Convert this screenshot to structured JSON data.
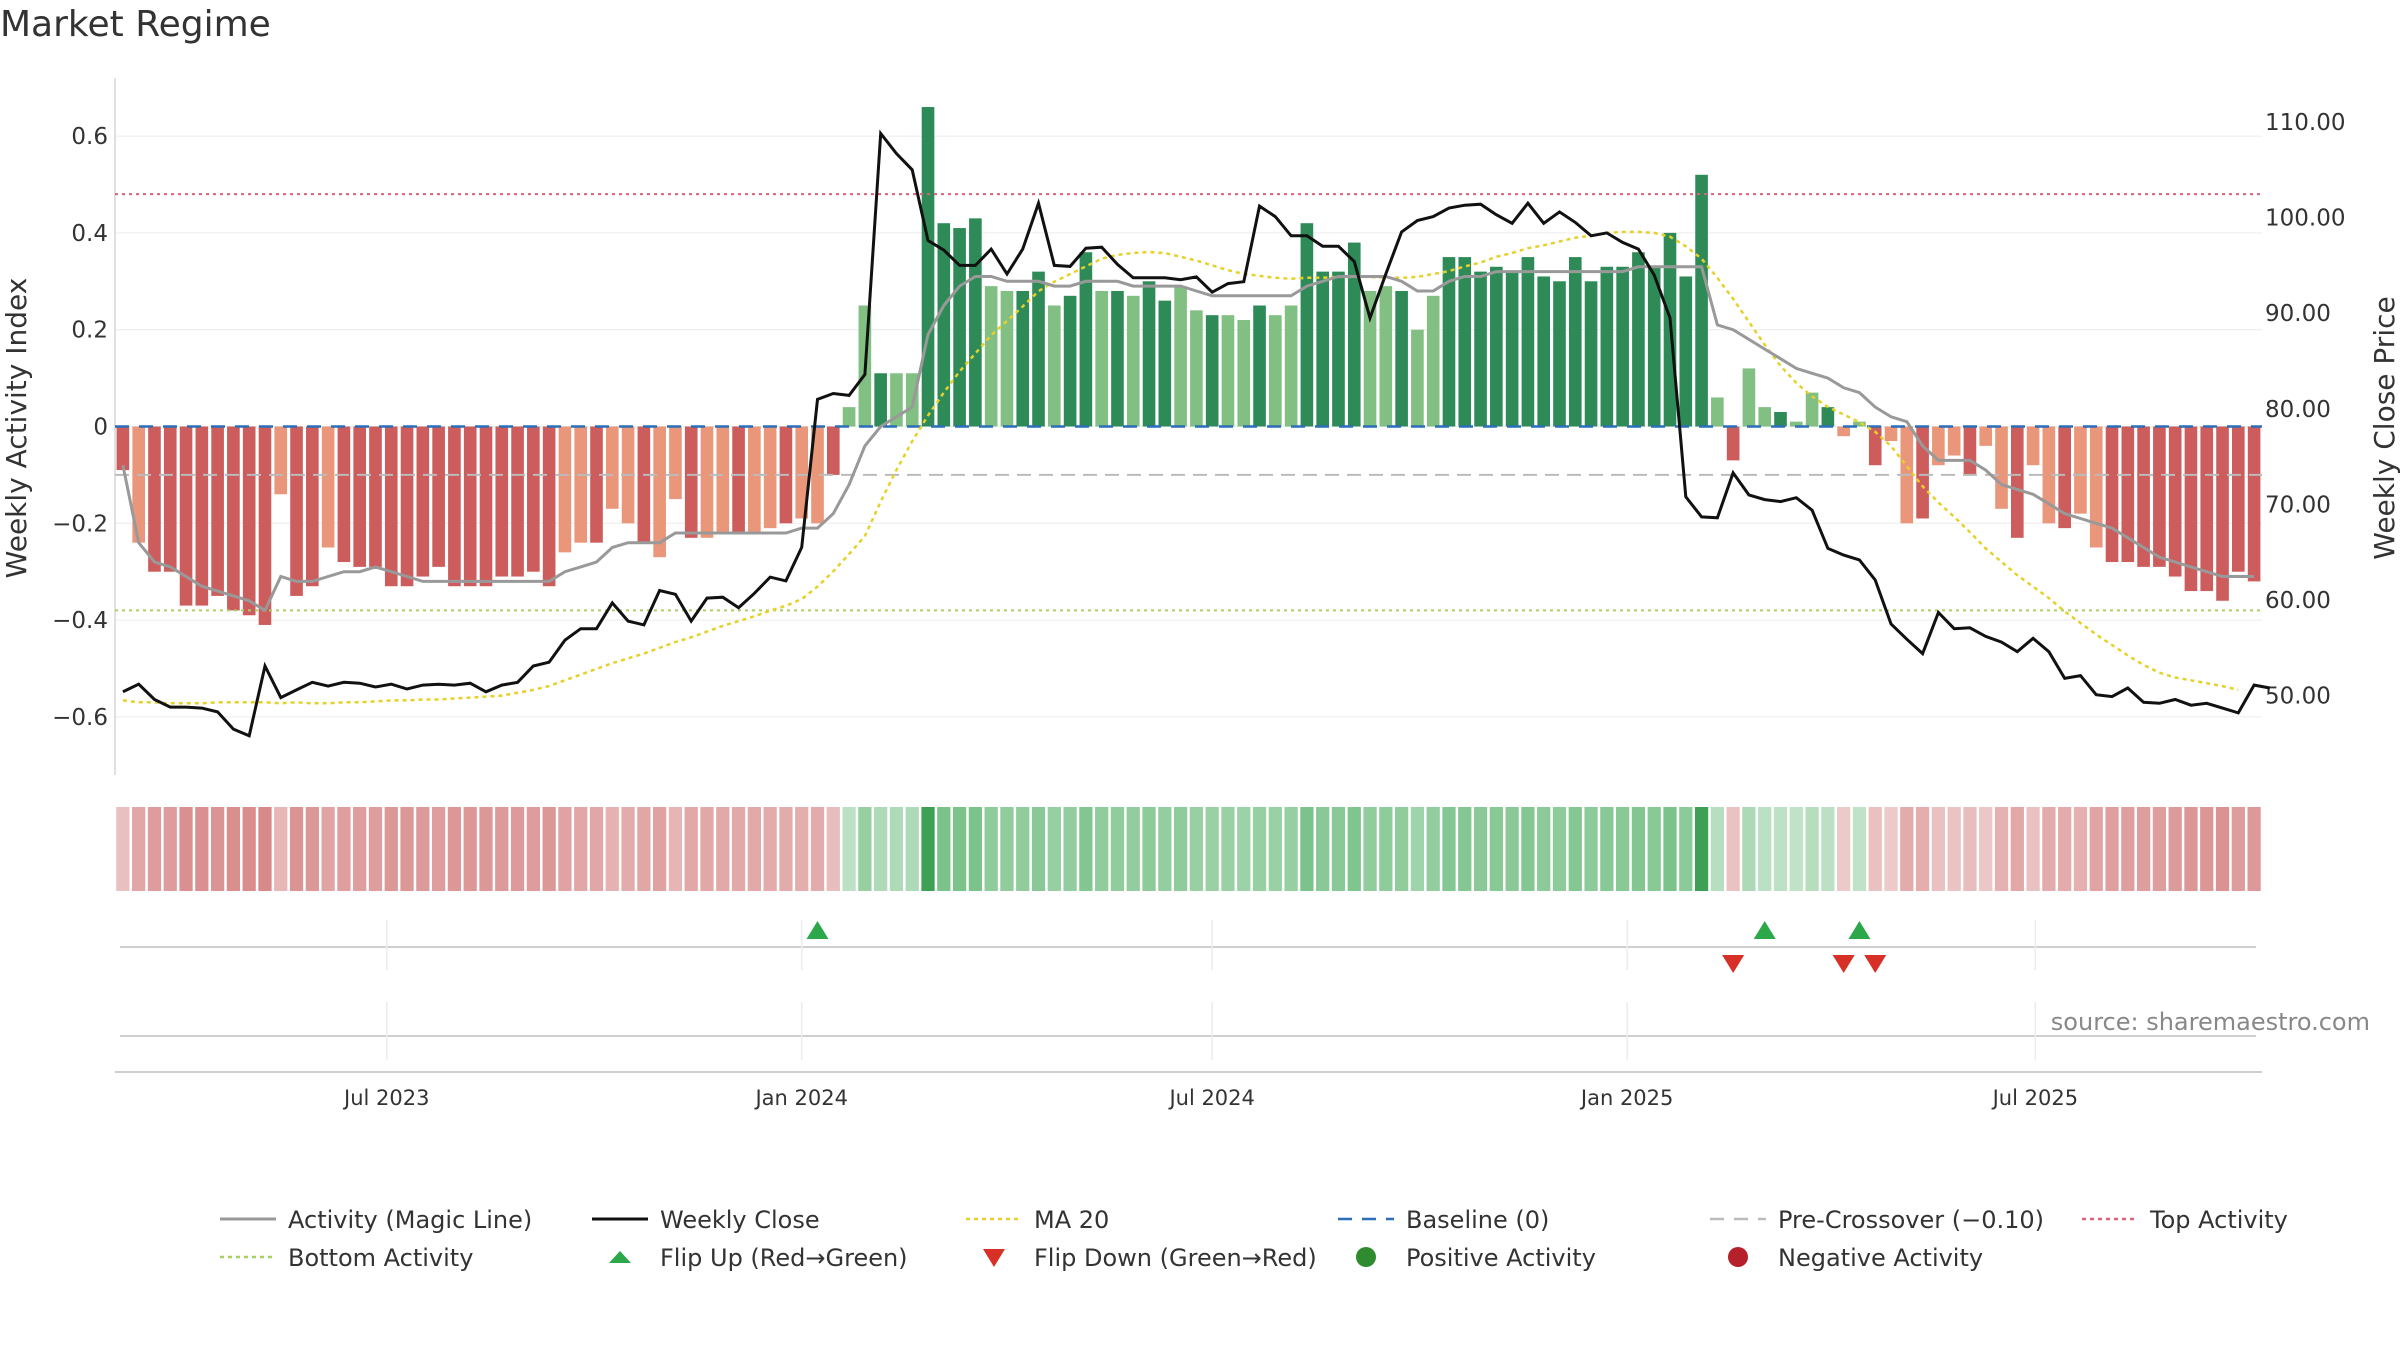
{
  "title": "Market Regime",
  "source": "source: sharemaestro.com",
  "chart_data": {
    "type": "bar",
    "x_start": "2023-03-06",
    "x_interval": "weekly",
    "ylabel": "Weekly Activity Index",
    "y2label": "Weekly Close Price",
    "ylim": [
      -0.72,
      0.72
    ],
    "y2lim": [
      41.7,
      114.6
    ],
    "yticks": [
      "0.6",
      "0.4",
      "0.2",
      "0",
      "−0.2",
      "−0.4",
      "−0.6"
    ],
    "y2ticks": [
      "110.00",
      "100.00",
      "90.00",
      "80.00",
      "70.00",
      "60.00",
      "50.00"
    ],
    "xticks": [
      "Jul 2023",
      "Jan 2024",
      "Jul 2024",
      "Jan 2025",
      "Jul 2025"
    ],
    "grid": true,
    "activity_bars": [
      -0.09,
      -0.24,
      -0.3,
      -0.3,
      -0.37,
      -0.37,
      -0.35,
      -0.38,
      -0.39,
      -0.41,
      -0.14,
      -0.35,
      -0.33,
      -0.25,
      -0.28,
      -0.29,
      -0.29,
      -0.33,
      -0.33,
      -0.31,
      -0.29,
      -0.33,
      -0.33,
      -0.33,
      -0.31,
      -0.31,
      -0.3,
      -0.33,
      -0.26,
      -0.24,
      -0.24,
      -0.17,
      -0.2,
      -0.24,
      -0.27,
      -0.15,
      -0.23,
      -0.23,
      -0.22,
      -0.22,
      -0.22,
      -0.21,
      -0.2,
      -0.19,
      -0.2,
      -0.1,
      0.04,
      0.25,
      0.11,
      0.11,
      0.11,
      0.66,
      0.42,
      0.41,
      0.43,
      0.29,
      0.28,
      0.28,
      0.32,
      0.25,
      0.27,
      0.36,
      0.28,
      0.28,
      0.27,
      0.3,
      0.26,
      0.29,
      0.24,
      0.23,
      0.23,
      0.22,
      0.25,
      0.23,
      0.25,
      0.42,
      0.32,
      0.32,
      0.38,
      0.28,
      0.29,
      0.28,
      0.2,
      0.27,
      0.35,
      0.35,
      0.32,
      0.33,
      0.32,
      0.35,
      0.31,
      0.3,
      0.35,
      0.3,
      0.33,
      0.33,
      0.36,
      0.33,
      0.4,
      0.31,
      0.52,
      0.06,
      -0.07,
      0.12,
      0.04,
      0.03,
      0.01,
      0.07,
      0.04,
      -0.02,
      0.01,
      -0.08,
      -0.03,
      -0.2,
      -0.19,
      -0.08,
      -0.06,
      -0.1,
      -0.04,
      -0.17,
      -0.23,
      -0.08,
      -0.2,
      -0.21,
      -0.18,
      -0.25,
      -0.28,
      -0.28,
      -0.29,
      -0.29,
      -0.31,
      -0.34,
      -0.34,
      -0.36,
      -0.3,
      -0.32
    ],
    "magic_line": [
      -0.08,
      -0.24,
      -0.28,
      -0.29,
      -0.31,
      -0.33,
      -0.34,
      -0.35,
      -0.36,
      -0.38,
      -0.31,
      -0.32,
      -0.32,
      -0.31,
      -0.3,
      -0.3,
      -0.29,
      -0.3,
      -0.31,
      -0.32,
      -0.32,
      -0.32,
      -0.32,
      -0.32,
      -0.32,
      -0.32,
      -0.32,
      -0.32,
      -0.3,
      -0.29,
      -0.28,
      -0.25,
      -0.24,
      -0.24,
      -0.24,
      -0.22,
      -0.22,
      -0.22,
      -0.22,
      -0.22,
      -0.22,
      -0.22,
      -0.22,
      -0.21,
      -0.21,
      -0.18,
      -0.12,
      -0.04,
      0.0,
      0.02,
      0.04,
      0.19,
      0.25,
      0.29,
      0.31,
      0.31,
      0.3,
      0.3,
      0.3,
      0.29,
      0.29,
      0.3,
      0.3,
      0.3,
      0.29,
      0.29,
      0.29,
      0.29,
      0.28,
      0.27,
      0.27,
      0.27,
      0.27,
      0.27,
      0.27,
      0.29,
      0.3,
      0.31,
      0.31,
      0.31,
      0.31,
      0.3,
      0.28,
      0.28,
      0.3,
      0.31,
      0.31,
      0.32,
      0.32,
      0.32,
      0.32,
      0.32,
      0.32,
      0.32,
      0.32,
      0.32,
      0.33,
      0.33,
      0.33,
      0.33,
      0.33,
      0.21,
      0.2,
      0.18,
      0.16,
      0.14,
      0.12,
      0.11,
      0.1,
      0.08,
      0.07,
      0.04,
      0.02,
      0.01,
      -0.04,
      -0.07,
      -0.07,
      -0.07,
      -0.09,
      -0.12,
      -0.13,
      -0.14,
      -0.16,
      -0.18,
      -0.19,
      -0.2,
      -0.21,
      -0.23,
      -0.25,
      -0.27,
      -0.28,
      -0.29,
      -0.3,
      -0.31,
      -0.31,
      -0.31
    ],
    "weekly_close": [
      50.4,
      51.2,
      49.6,
      48.8,
      48.8,
      48.7,
      48.3,
      46.5,
      45.8,
      53.1,
      49.8,
      50.6,
      51.4,
      51.0,
      51.4,
      51.3,
      50.9,
      51.2,
      50.7,
      51.1,
      51.2,
      51.1,
      51.3,
      50.4,
      51.1,
      51.4,
      53.1,
      53.5,
      55.8,
      57.0,
      57.0,
      59.7,
      57.8,
      57.4,
      61.0,
      60.6,
      57.8,
      60.2,
      60.3,
      59.2,
      60.7,
      62.4,
      62.0,
      65.5,
      81.0,
      81.6,
      81.4,
      83.6,
      108.8,
      106.7,
      105.0,
      97.6,
      96.6,
      95.0,
      95.0,
      96.7,
      94.1,
      96.7,
      101.5,
      95.0,
      94.9,
      96.8,
      96.9,
      95.1,
      93.7,
      93.7,
      93.7,
      93.5,
      93.8,
      92.2,
      93.1,
      93.3,
      101.2,
      100.1,
      98.1,
      98.1,
      97.0,
      97.0,
      95.4,
      89.5,
      94.1,
      98.5,
      99.7,
      100.1,
      101.0,
      101.3,
      101.4,
      100.3,
      99.4,
      101.5,
      99.4,
      100.6,
      99.5,
      98.1,
      98.4,
      97.4,
      96.7,
      94.0,
      89.5,
      70.8,
      68.7,
      68.6,
      73.3,
      71.0,
      70.5,
      70.3,
      70.7,
      69.4,
      65.4,
      64.7,
      64.2,
      62.1,
      57.5,
      55.9,
      54.4,
      58.7,
      57.0,
      57.1,
      56.2,
      55.6,
      54.6,
      56.0,
      54.6,
      51.8,
      52.1,
      50.1,
      49.9,
      50.8,
      49.3,
      49.2,
      49.6,
      49.0,
      49.2,
      48.7,
      48.2,
      51.1,
      50.8
    ],
    "ma20": [
      49.5,
      49.3,
      49.3,
      49.2,
      49.2,
      49.2,
      49.3,
      49.3,
      49.3,
      49.3,
      49.2,
      49.3,
      49.2,
      49.2,
      49.3,
      49.3,
      49.4,
      49.5,
      49.5,
      49.6,
      49.6,
      49.7,
      49.8,
      49.9,
      50.0,
      50.3,
      50.6,
      51.0,
      51.6,
      52.2,
      52.8,
      53.4,
      53.9,
      54.4,
      55.0,
      55.6,
      56.1,
      56.7,
      57.3,
      57.8,
      58.3,
      58.9,
      59.4,
      60.1,
      61.4,
      63.0,
      64.8,
      66.7,
      70.3,
      73.6,
      76.6,
      79.3,
      81.7,
      83.9,
      85.8,
      87.7,
      89.2,
      90.7,
      92.3,
      93.3,
      94.1,
      94.9,
      95.7,
      96.1,
      96.3,
      96.4,
      96.3,
      95.9,
      95.5,
      95.0,
      94.5,
      94.1,
      93.9,
      93.7,
      93.6,
      93.7,
      93.7,
      93.8,
      93.8,
      93.8,
      93.7,
      93.7,
      93.8,
      94.1,
      94.4,
      94.9,
      95.3,
      95.9,
      96.3,
      96.8,
      97.1,
      97.5,
      97.9,
      98.1,
      98.4,
      98.5,
      98.5,
      98.4,
      98.0,
      97.0,
      95.7,
      93.7,
      91.5,
      89.1,
      86.7,
      84.5,
      82.7,
      81.3,
      80.2,
      79.4,
      78.6,
      77.6,
      76.1,
      74.0,
      71.9,
      70.2,
      68.7,
      67.1,
      65.4,
      64.0,
      62.6,
      61.4,
      60.2,
      58.8,
      57.6,
      56.4,
      55.3,
      54.2,
      53.2,
      52.4,
      51.9,
      51.6,
      51.3,
      51.0,
      50.6
    ],
    "reference_lines": {
      "baseline": 0,
      "pre_crossover": -0.1,
      "top_activity": 0.48,
      "bottom_activity": -0.38
    },
    "flip_up_indices": [
      44,
      104,
      110
    ],
    "flip_down_indices": [
      102,
      109,
      111
    ],
    "legend": [
      {
        "label": "Activity (Magic Line)",
        "marker": "line",
        "color": "#999999"
      },
      {
        "label": "Weekly Close",
        "marker": "line",
        "color": "#111111"
      },
      {
        "label": "MA 20",
        "marker": "dotted",
        "color": "#e6d12a"
      },
      {
        "label": "Baseline (0)",
        "marker": "dashed",
        "color": "#2a6fb8"
      },
      {
        "label": "Pre-Crossover (−0.10)",
        "marker": "dashed",
        "color": "#bbbbbb"
      },
      {
        "label": "Top Activity",
        "marker": "dotted",
        "color": "#d9627a"
      },
      {
        "label": "Bottom Activity",
        "marker": "dotted",
        "color": "#a6cf64"
      },
      {
        "label": "Flip Up (Red→Green)",
        "marker": "triangle-up",
        "color": "#2ca84a"
      },
      {
        "label": "Flip Down (Green→Red)",
        "marker": "triangle-down",
        "color": "#d63027"
      },
      {
        "label": "Positive Activity",
        "marker": "circle",
        "color": "#2e8b2e"
      },
      {
        "label": "Negative Activity",
        "marker": "circle",
        "color": "#b5202a"
      }
    ]
  },
  "colors": {
    "pos_dark": "#2e8b57",
    "pos_light": "#82bf82",
    "neg_dark": "#cd5c5c",
    "neg_light": "#e9967a"
  }
}
